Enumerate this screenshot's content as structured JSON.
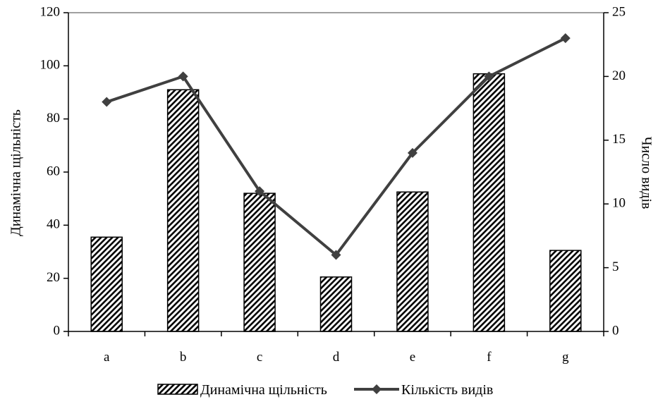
{
  "chart_data": {
    "type": "bar",
    "categories": [
      "a",
      "b",
      "c",
      "d",
      "e",
      "f",
      "g"
    ],
    "series": [
      {
        "name": "Динамічна щільність",
        "type": "bar",
        "axis": "left",
        "values": [
          35.5,
          91,
          52,
          20.5,
          52.5,
          97,
          30.5
        ]
      },
      {
        "name": "Кількість видів",
        "type": "line",
        "axis": "right",
        "values": [
          18,
          20,
          11,
          6,
          14,
          20,
          23
        ]
      }
    ],
    "ylabel": "Динамічна щільність",
    "y2label": "Число видів",
    "ylim": [
      0,
      120
    ],
    "y2lim": [
      0,
      25
    ],
    "yticks": [
      0,
      20,
      40,
      60,
      80,
      100,
      120
    ],
    "y2ticks": [
      0,
      5,
      10,
      15,
      20,
      25
    ],
    "grid": false,
    "legend": "bottom",
    "colors": {
      "bar_fill": "#ffffff",
      "bar_hatch": "#000000",
      "line": "#404040",
      "axis": "#000000",
      "top_border": "#808080"
    }
  }
}
